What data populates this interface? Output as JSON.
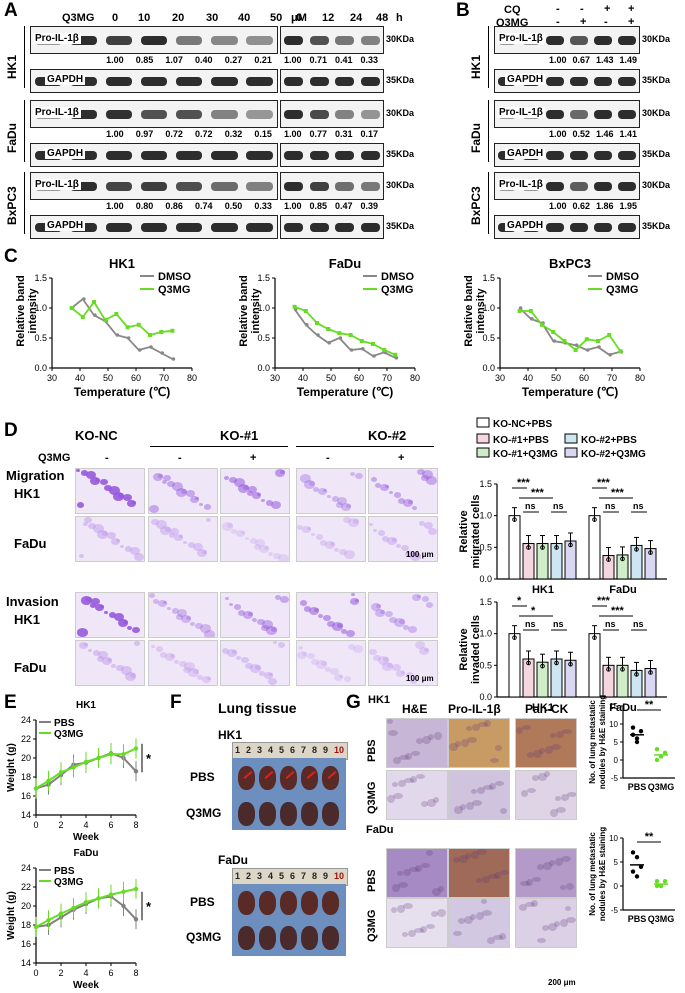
{
  "panels": {
    "A": "A",
    "B": "B",
    "C": "C",
    "D": "D",
    "E": "E",
    "F": "F",
    "G": "G"
  },
  "panelA": {
    "treatment_label": "Q3MG",
    "dose_values": [
      "0",
      "10",
      "20",
      "30",
      "40",
      "50"
    ],
    "dose_unit": "μM",
    "time_values": [
      "0",
      "12",
      "24",
      "48"
    ],
    "time_unit": "h",
    "cell_lines": [
      "HK1",
      "FaDu",
      "BxPC3"
    ],
    "protein": "Pro-IL-1β",
    "loading": "GAPDH",
    "kda_protein": "30KDa",
    "kda_loading": "35KDa",
    "dose_quant": [
      [
        "1.00",
        "0.85",
        "1.07",
        "0.40",
        "0.27",
        "0.21"
      ],
      [
        "1.00",
        "0.97",
        "0.72",
        "0.72",
        "0.32",
        "0.15"
      ],
      [
        "1.00",
        "0.80",
        "0.86",
        "0.74",
        "0.50",
        "0.33"
      ]
    ],
    "time_quant": [
      [
        "1.00",
        "0.71",
        "0.41",
        "0.33"
      ],
      [
        "1.00",
        "0.77",
        "0.31",
        "0.17"
      ],
      [
        "1.00",
        "0.85",
        "0.47",
        "0.39"
      ]
    ]
  },
  "panelB": {
    "cq_label": "CQ",
    "q3mg_label": "Q3MG",
    "cq_signs": [
      "-",
      "-",
      "+",
      "+"
    ],
    "q3mg_signs": [
      "-",
      "+",
      "-",
      "+"
    ],
    "quant": [
      [
        "1.00",
        "0.67",
        "1.43",
        "1.49"
      ],
      [
        "1.00",
        "0.52",
        "1.46",
        "1.41"
      ],
      [
        "1.00",
        "0.62",
        "1.86",
        "1.95"
      ]
    ]
  },
  "panelC": {
    "ylabel": "Relative band intensity",
    "xlabel": "Temperature (℃)",
    "legend": [
      "DMSO",
      "Q3MG"
    ]
  },
  "chart_data": [
    {
      "type": "line",
      "title": "HK1",
      "xlabel": "Temperature (℃)",
      "ylabel": "Relative band intensity",
      "xlim": [
        30,
        80
      ],
      "ylim": [
        0,
        1.5
      ],
      "legend": "top-right",
      "x": [
        37,
        41,
        45,
        49,
        53,
        57,
        61,
        65,
        69,
        73
      ],
      "series": [
        {
          "name": "DMSO",
          "values": [
            1.0,
            1.15,
            0.88,
            0.78,
            0.55,
            0.5,
            0.3,
            0.35,
            0.25,
            0.15
          ]
        },
        {
          "name": "Q3MG",
          "values": [
            1.0,
            0.85,
            1.1,
            0.8,
            0.9,
            0.68,
            0.72,
            0.55,
            0.6,
            0.62
          ]
        }
      ]
    },
    {
      "type": "line",
      "title": "FaDu",
      "xlabel": "Temperature (℃)",
      "ylabel": "Relative band intensity",
      "xlim": [
        30,
        80
      ],
      "ylim": [
        0,
        1.5
      ],
      "legend": "top-right",
      "x": [
        37,
        41,
        45,
        49,
        53,
        57,
        61,
        65,
        69,
        73
      ],
      "series": [
        {
          "name": "DMSO",
          "values": [
            0.98,
            0.72,
            0.55,
            0.42,
            0.5,
            0.3,
            0.32,
            0.2,
            0.26,
            0.17
          ]
        },
        {
          "name": "Q3MG",
          "values": [
            1.02,
            0.95,
            0.75,
            0.65,
            0.58,
            0.55,
            0.45,
            0.4,
            0.3,
            0.22
          ]
        }
      ]
    },
    {
      "type": "line",
      "title": "BxPC3",
      "xlabel": "Temperature (℃)",
      "ylabel": "Relative band intensity",
      "xlim": [
        30,
        80
      ],
      "ylim": [
        0,
        1.5
      ],
      "legend": "top-right",
      "x": [
        37,
        41,
        45,
        49,
        53,
        57,
        61,
        65,
        69,
        73
      ],
      "series": [
        {
          "name": "DMSO",
          "values": [
            1.0,
            0.82,
            0.75,
            0.45,
            0.42,
            0.38,
            0.3,
            0.35,
            0.22,
            0.27
          ]
        },
        {
          "name": "Q3MG",
          "values": [
            0.95,
            0.95,
            0.72,
            0.6,
            0.45,
            0.3,
            0.48,
            0.45,
            0.55,
            0.28
          ]
        }
      ]
    },
    {
      "type": "bar",
      "title": "",
      "ylabel": "Relative migrated cells",
      "ylim": [
        0,
        1.5
      ],
      "categories": [
        "HK1",
        "FaDu"
      ],
      "legend": "top",
      "series": [
        {
          "name": "KO-NC+PBS",
          "values": [
            1.0,
            1.0
          ]
        },
        {
          "name": "KO-#1+PBS",
          "values": [
            0.56,
            0.37
          ]
        },
        {
          "name": "KO-#1+Q3MG",
          "values": [
            0.56,
            0.38
          ]
        },
        {
          "name": "KO-#2+PBS",
          "values": [
            0.56,
            0.53
          ]
        },
        {
          "name": "KO-#2+Q3MG",
          "values": [
            0.6,
            0.48
          ]
        }
      ]
    },
    {
      "type": "bar",
      "title": "",
      "ylabel": "Relative invaded cells",
      "ylim": [
        0,
        1.5
      ],
      "categories": [
        "HK1",
        "FaDu"
      ],
      "series": [
        {
          "name": "KO-NC+PBS",
          "values": [
            1.0,
            1.0
          ]
        },
        {
          "name": "KO-#1+PBS",
          "values": [
            0.6,
            0.5
          ]
        },
        {
          "name": "KO-#1+Q3MG",
          "values": [
            0.55,
            0.5
          ]
        },
        {
          "name": "KO-#2+PBS",
          "values": [
            0.6,
            0.42
          ]
        },
        {
          "name": "KO-#2+Q3MG",
          "values": [
            0.58,
            0.45
          ]
        }
      ]
    },
    {
      "type": "line",
      "title": "HK1",
      "xlabel": "Week",
      "ylabel": "Weight (g)",
      "ylim": [
        14,
        24
      ],
      "x": [
        0,
        1,
        2,
        3,
        4,
        5,
        6,
        7,
        8
      ],
      "series": [
        {
          "name": "PBS",
          "values": [
            16.8,
            17.2,
            18.2,
            19.3,
            19.5,
            20.0,
            20.5,
            20.0,
            18.6
          ]
        },
        {
          "name": "Q3MG",
          "values": [
            16.8,
            17.6,
            18.5,
            19.0,
            19.6,
            20.0,
            20.4,
            20.4,
            21.0
          ]
        }
      ]
    },
    {
      "type": "line",
      "title": "FaDu",
      "xlabel": "Week",
      "ylabel": "Weight (g)",
      "ylim": [
        14,
        24
      ],
      "x": [
        0,
        1,
        2,
        3,
        4,
        5,
        6,
        7,
        8
      ],
      "series": [
        {
          "name": "PBS",
          "values": [
            17.8,
            18.0,
            18.8,
            19.6,
            20.2,
            20.8,
            21.0,
            20.0,
            18.6
          ]
        },
        {
          "name": "Q3MG",
          "values": [
            17.8,
            18.5,
            19.2,
            19.8,
            20.4,
            20.8,
            21.2,
            21.5,
            21.8
          ]
        }
      ]
    },
    {
      "type": "scatter",
      "title": "",
      "ylabel": "No. of lung metastatic nodules by H&E staining",
      "ylim": [
        -5,
        15
      ],
      "categories": [
        "PBS",
        "Q3MG"
      ],
      "series": [
        {
          "name": "PBS",
          "values": [
            9,
            6,
            8,
            7,
            5
          ]
        },
        {
          "name": "Q3MG",
          "values": [
            3,
            1,
            2,
            0,
            1
          ]
        }
      ]
    },
    {
      "type": "scatter",
      "title": "",
      "ylabel": "No. of lung metastatic nodules by H&E staining",
      "ylim": [
        -5,
        10
      ],
      "categories": [
        "PBS",
        "Q3MG"
      ],
      "series": [
        {
          "name": "PBS",
          "values": [
            7,
            6,
            4,
            3,
            2
          ]
        },
        {
          "name": "Q3MG",
          "values": [
            1,
            0,
            1,
            0,
            0
          ]
        }
      ]
    }
  ],
  "panelD": {
    "groups": [
      "KO-NC",
      "KO-#1",
      "KO-#2"
    ],
    "q3mg_label": "Q3MG",
    "signs": [
      "-",
      "-",
      "+",
      "-",
      "+"
    ],
    "migration_label": "Migration",
    "invasion_label": "Invasion",
    "rows": [
      "HK1",
      "FaDu",
      "HK1",
      "FaDu"
    ],
    "scale": "100 μm",
    "legend": [
      "KO-NC+PBS",
      "KO-#1+PBS",
      "KO-#1+Q3MG",
      "KO-#2+PBS",
      "KO-#2+Q3MG"
    ],
    "legend_colors": [
      "#ffffff",
      "#f6d6de",
      "#cfeec8",
      "#cde6f2",
      "#d8d8f3"
    ],
    "sig": [
      "***",
      "***",
      "ns",
      "ns",
      "***",
      "***",
      "ns",
      "ns",
      "*",
      "*",
      "ns",
      "ns",
      "***",
      "***",
      "ns",
      "ns"
    ],
    "yl_mig": "Relative migrated cells",
    "yl_inv": "Relative invaded cells",
    "xcats": [
      "HK1",
      "FaDu"
    ]
  },
  "panelE": {
    "titles": [
      "HK1",
      "FaDu"
    ],
    "legend": [
      "PBS",
      "Q3MG"
    ],
    "ylabel": "Weight (g)",
    "xlabel": "Week",
    "star": "*",
    "colors": {
      "PBS": "#808080",
      "Q3MG": "#66dd22"
    }
  },
  "panelF": {
    "title": "Lung tissue",
    "sub": [
      "HK1",
      "FaDu"
    ],
    "rows": [
      "PBS",
      "Q3MG"
    ],
    "ruler": [
      "1",
      "2",
      "3",
      "4",
      "5",
      "6",
      "7",
      "8",
      "9",
      "10"
    ]
  },
  "panelG": {
    "cols": [
      "H&E",
      "Pro-IL-1β",
      "Pan-CK"
    ],
    "lines": [
      "HK1",
      "FaDu"
    ],
    "rows": [
      "PBS",
      "Q3MG"
    ],
    "scale": "200 μm",
    "ylabel": "No. of lung metastatic nodules by H&E staining",
    "star": "**",
    "xcats": [
      "PBS",
      "Q3MG"
    ]
  }
}
